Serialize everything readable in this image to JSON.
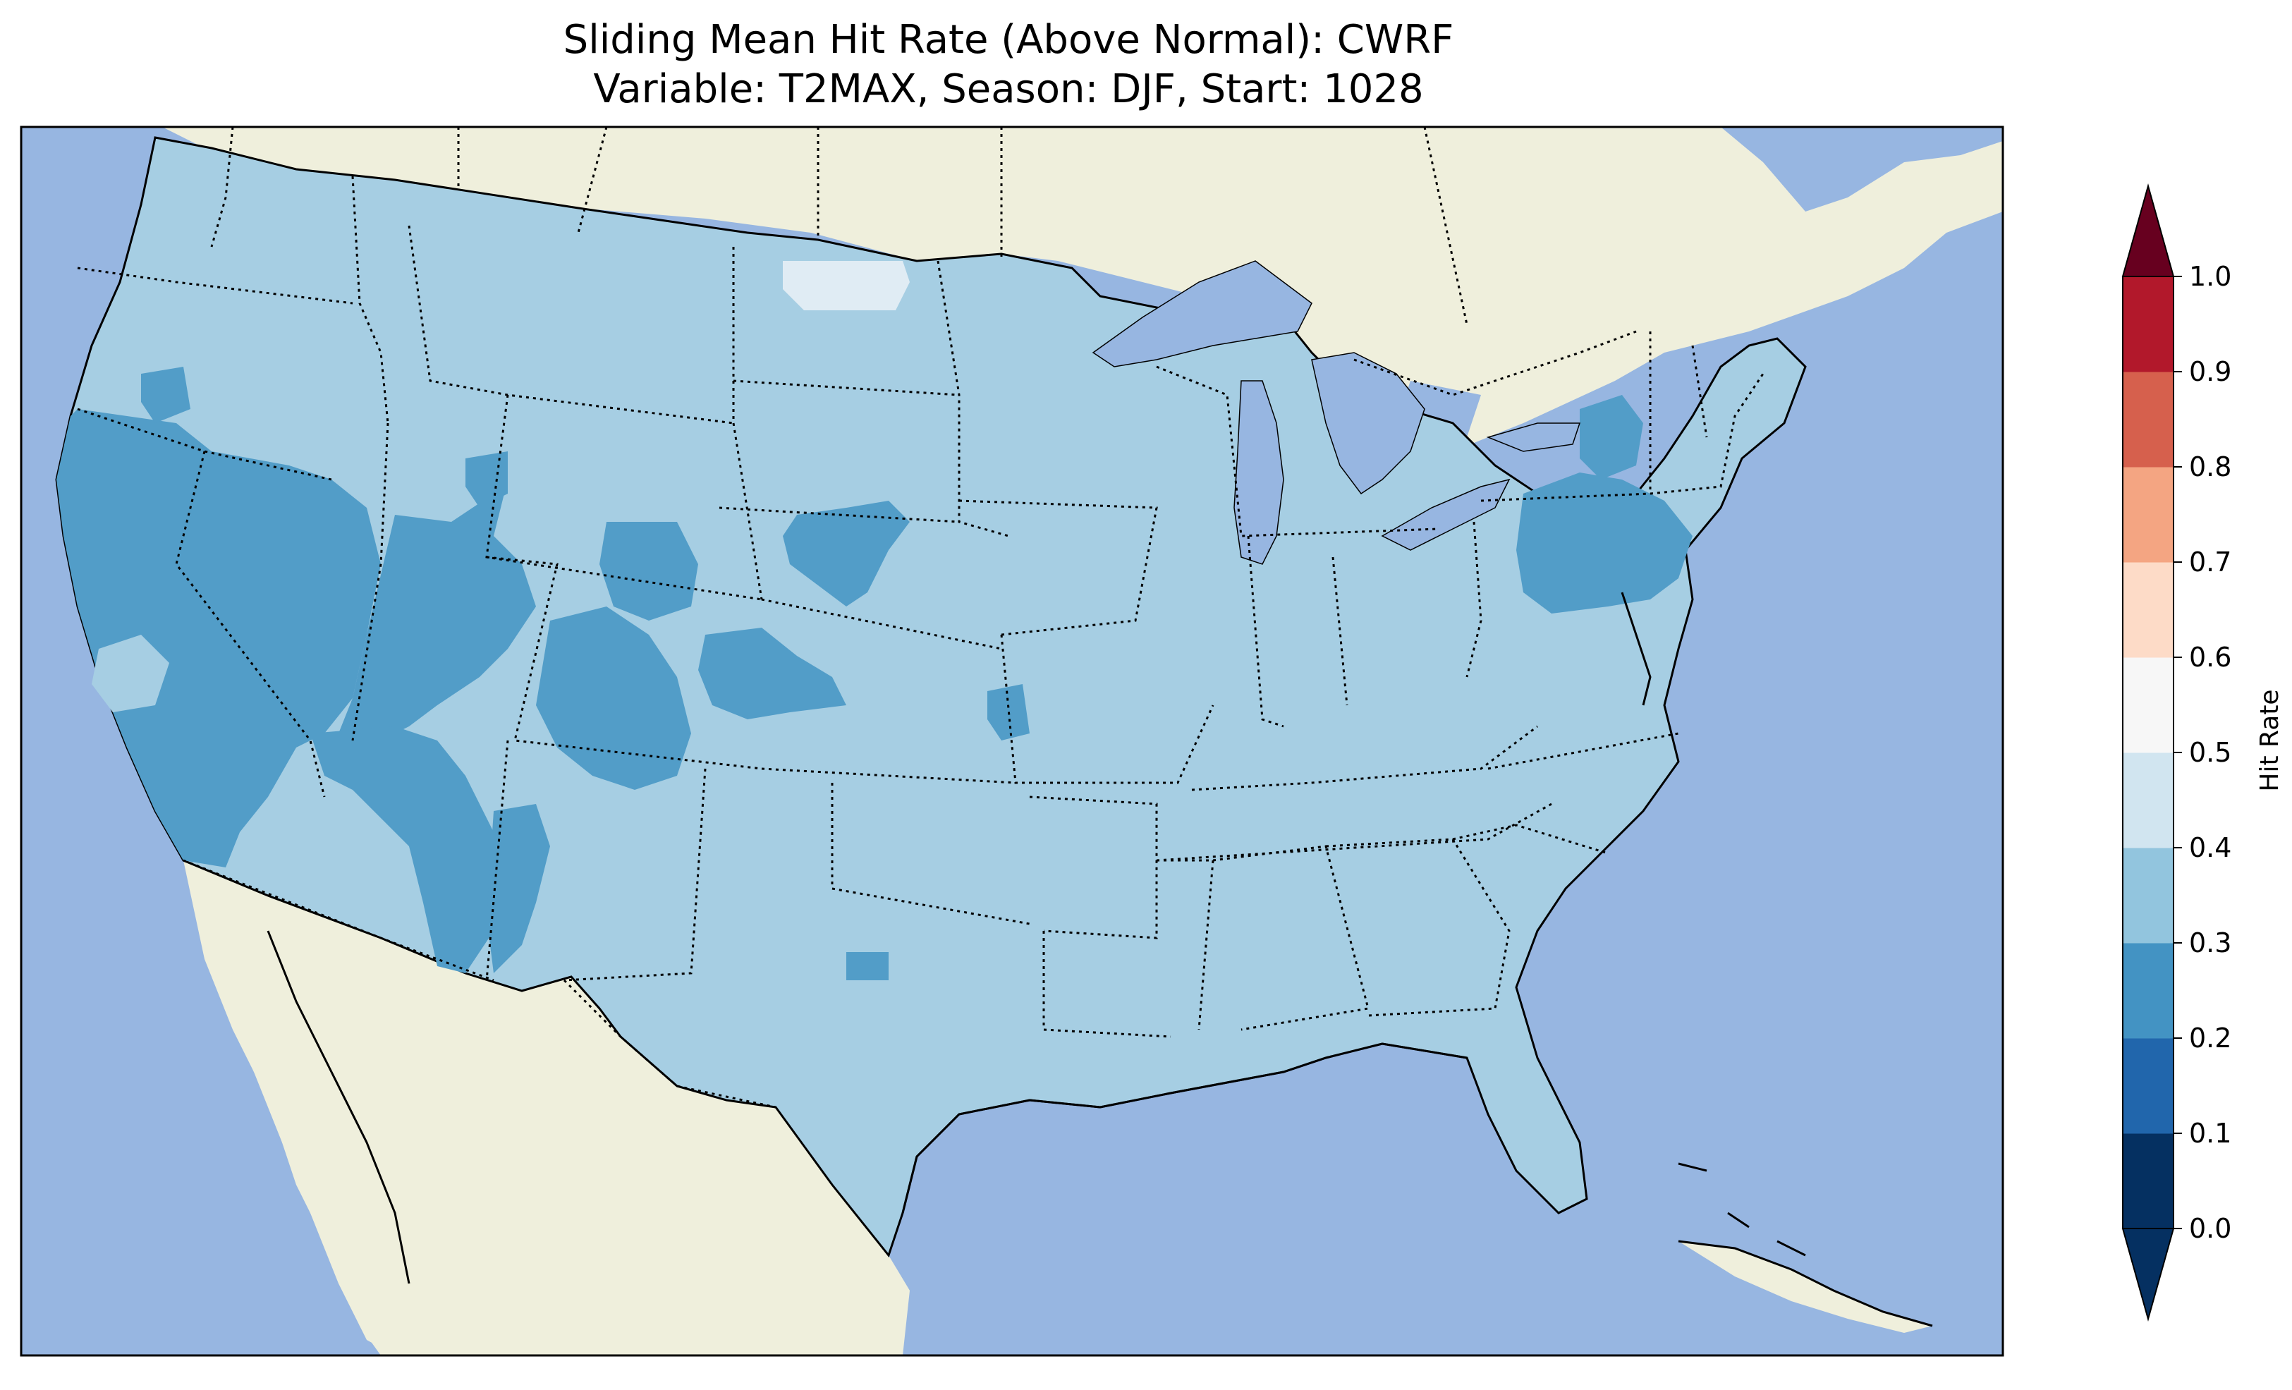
{
  "title": {
    "line1": "Sliding Mean Hit Rate (Above Normal): CWRF",
    "line2": "Variable: T2MAX, Season: DJF, Start: 1028"
  },
  "colors": {
    "ocean": "#97b6e1",
    "land": "#efefdc",
    "bin_0_2_0_3": "#529dc8",
    "bin_0_3_0_4": "#a6cee3",
    "bin_0_4_0_5": "#e0ecf4",
    "lakes": "#97b6e1"
  },
  "colorbar": {
    "label": "Hit Rate",
    "ticks": [
      "0.0",
      "0.1",
      "0.2",
      "0.3",
      "0.4",
      "0.5",
      "0.6",
      "0.7",
      "0.8",
      "0.9",
      "1.0"
    ],
    "bin_colors": [
      "#053061",
      "#2166ac",
      "#4393c3",
      "#92c5de",
      "#d1e5f0",
      "#f7f7f7",
      "#fddbc7",
      "#f4a582",
      "#d6604d",
      "#b2182b",
      "#67001f"
    ],
    "extend_low": "#053061",
    "extend_high": "#67001f"
  },
  "map_data": {
    "region": "Contiguous United States",
    "value_bins": [
      {
        "range": [
          0.3,
          0.4
        ],
        "extent": "background"
      },
      {
        "range": [
          0.2,
          0.3
        ],
        "extent": "California, Nevada, western Arizona, Utah/Colorado patches, Pennsylvania/New Jersey, Nebraska patch"
      },
      {
        "range": [
          0.4,
          0.5
        ],
        "extent": "northern North Dakota patch"
      }
    ]
  }
}
